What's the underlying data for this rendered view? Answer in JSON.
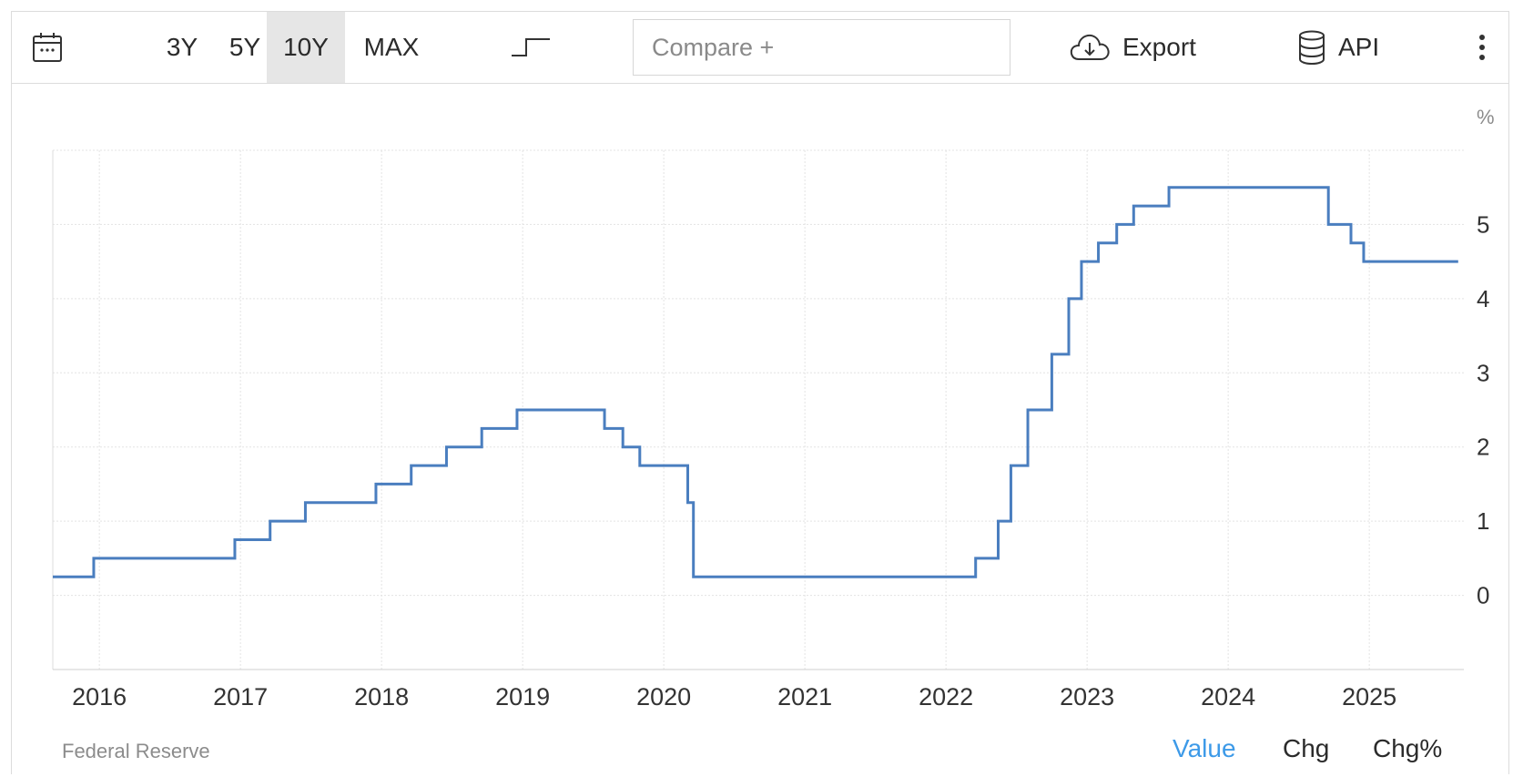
{
  "toolbar": {
    "calendar_icon": "calendar-icon",
    "ranges": [
      {
        "label": "3Y",
        "active": false
      },
      {
        "label": "5Y",
        "active": false
      },
      {
        "label": "10Y",
        "active": true
      },
      {
        "label": "MAX",
        "active": false
      }
    ],
    "chart_style_icon": "step-line-icon",
    "compare_placeholder": "Compare +",
    "export_label": "Export",
    "export_icon": "cloud-download-icon",
    "api_label": "API",
    "api_icon": "database-icon",
    "more_icon": "more-vertical-icon"
  },
  "footer": {
    "source": "Federal Reserve",
    "views": [
      {
        "label": "Value",
        "active": true
      },
      {
        "label": "Chg",
        "active": false
      },
      {
        "label": "Chg%",
        "active": false
      }
    ]
  },
  "colors": {
    "line": "#4a7ebf",
    "active_view": "#3d9ae8",
    "grid": "#e3e3e3"
  },
  "chart_data": {
    "type": "line",
    "step": true,
    "unit_label": "%",
    "x_ticks": [
      "2016",
      "2017",
      "2018",
      "2019",
      "2020",
      "2021",
      "2022",
      "2023",
      "2024",
      "2025"
    ],
    "y_ticks": [
      "0",
      "1",
      "2",
      "3",
      "4",
      "5"
    ],
    "xlim": [
      2015.67,
      2025.67
    ],
    "ylim": [
      -1,
      6
    ],
    "grid": true,
    "series": [
      {
        "points": [
          [
            2015.67,
            0.25
          ],
          [
            2015.96,
            0.5
          ],
          [
            2016.96,
            0.75
          ],
          [
            2017.21,
            1.0
          ],
          [
            2017.46,
            1.25
          ],
          [
            2017.96,
            1.5
          ],
          [
            2018.21,
            1.75
          ],
          [
            2018.46,
            2.0
          ],
          [
            2018.71,
            2.25
          ],
          [
            2018.96,
            2.5
          ],
          [
            2019.58,
            2.25
          ],
          [
            2019.71,
            2.0
          ],
          [
            2019.83,
            1.75
          ],
          [
            2020.17,
            1.25
          ],
          [
            2020.21,
            0.25
          ],
          [
            2022.21,
            0.5
          ],
          [
            2022.37,
            1.0
          ],
          [
            2022.46,
            1.75
          ],
          [
            2022.58,
            2.5
          ],
          [
            2022.75,
            3.25
          ],
          [
            2022.87,
            4.0
          ],
          [
            2022.96,
            4.5
          ],
          [
            2023.08,
            4.75
          ],
          [
            2023.21,
            5.0
          ],
          [
            2023.33,
            5.25
          ],
          [
            2023.58,
            5.5
          ],
          [
            2024.71,
            5.0
          ],
          [
            2024.87,
            4.75
          ],
          [
            2024.96,
            4.5
          ],
          [
            2025.63,
            4.5
          ]
        ]
      }
    ]
  }
}
